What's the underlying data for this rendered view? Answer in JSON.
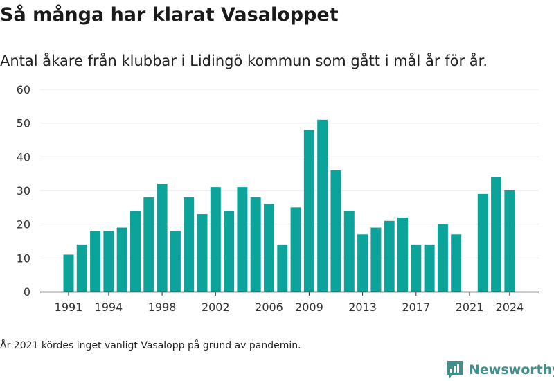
{
  "header": {
    "title": "Så många har klarat Vasaloppet",
    "subtitle": "Antal åkare från klubbar i Lidingö kommun som gått i mål år för år."
  },
  "footer": {
    "note": "År 2021 kördes inget vanligt Vasalopp på grund av pandemin.",
    "brand": "Newsworthy"
  },
  "colors": {
    "bar": "#0ca39a",
    "grid": "#e3e3e3",
    "axis": "#333333",
    "brand": "#3f8f8b"
  },
  "chart_data": {
    "type": "bar",
    "title": "Så många har klarat Vasaloppet",
    "subtitle": "Antal åkare från klubbar i Lidingö kommun som gått i mål år för år.",
    "xlabel": "",
    "ylabel": "",
    "ylim": [
      0,
      60
    ],
    "yticks": [
      0,
      10,
      20,
      30,
      40,
      50,
      60
    ],
    "xticks": [
      1991,
      1994,
      1998,
      2002,
      2006,
      2009,
      2013,
      2017,
      2021,
      2024
    ],
    "grid": true,
    "legend": "none",
    "categories": [
      1991,
      1992,
      1993,
      1994,
      1995,
      1996,
      1997,
      1998,
      1999,
      2000,
      2001,
      2002,
      2003,
      2004,
      2005,
      2006,
      2007,
      2008,
      2009,
      2010,
      2011,
      2012,
      2013,
      2014,
      2015,
      2016,
      2017,
      2018,
      2019,
      2020,
      2021,
      2022,
      2023,
      2024
    ],
    "values": [
      11,
      14,
      18,
      18,
      19,
      24,
      28,
      32,
      18,
      28,
      23,
      31,
      24,
      31,
      28,
      26,
      14,
      25,
      48,
      51,
      36,
      24,
      17,
      19,
      21,
      22,
      14,
      14,
      20,
      17,
      null,
      29,
      34,
      30
    ]
  }
}
